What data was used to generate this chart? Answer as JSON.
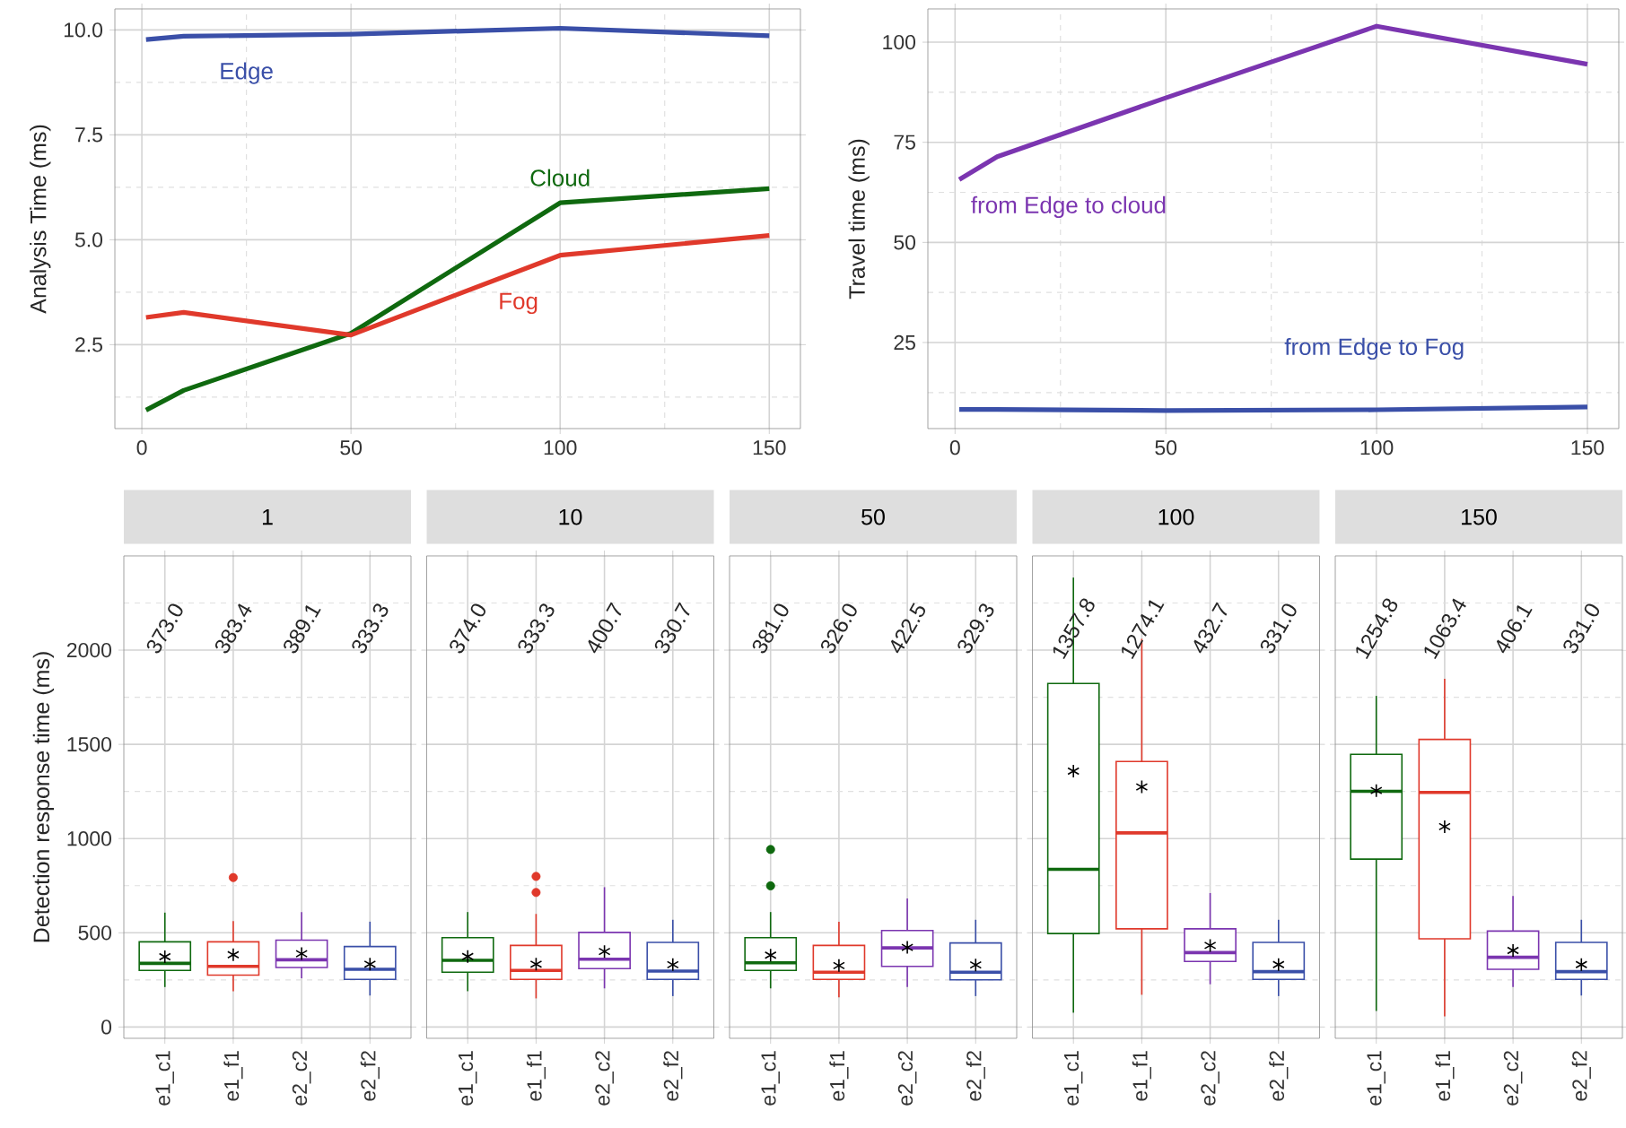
{
  "chart_data": [
    {
      "type": "line",
      "ylabel": "Analysis Time (ms)",
      "x": [
        1,
        10,
        50,
        100,
        150
      ],
      "xlim": [
        -6.45,
        157.45
      ],
      "ylim": [
        0.5,
        10.5
      ],
      "xticks": [
        0,
        50,
        100,
        150
      ],
      "yticks": [
        {
          "value": 2.5,
          "label": "2.5"
        },
        {
          "value": 5,
          "label": "5.0"
        },
        {
          "value": 7.5,
          "label": "7.5"
        },
        {
          "value": 10,
          "label": "10.0"
        }
      ],
      "grid": true,
      "series": [
        {
          "name": "Edge",
          "color": "#3a4fa8",
          "values": [
            9.77,
            9.85,
            9.9,
            10.04,
            9.86
          ]
        },
        {
          "name": "Cloud",
          "color": "#0f690f",
          "values": [
            0.94,
            1.41,
            2.77,
            5.88,
            6.22
          ]
        },
        {
          "name": "Fog",
          "color": "#e0392b",
          "values": [
            3.15,
            3.27,
            2.73,
            4.63,
            5.1
          ]
        }
      ]
    },
    {
      "type": "line",
      "ylabel": "Travel time (ms)",
      "x": [
        1,
        10,
        50,
        100,
        150
      ],
      "xlim": [
        -6.45,
        157.45
      ],
      "ylim": [
        3.5,
        108.3
      ],
      "xticks": [
        0,
        50,
        100,
        150
      ],
      "yticks": [
        25,
        50,
        75,
        100
      ],
      "grid": true,
      "series": [
        {
          "name": "from Edge to cloud",
          "color": "#7b35b0",
          "values": [
            65.7,
            71.4,
            86.1,
            104.0,
            94.5
          ]
        },
        {
          "name": "from Edge to Fog",
          "color": "#3a4fa8",
          "values": [
            8.3,
            8.3,
            8.0,
            8.2,
            8.9
          ]
        }
      ]
    },
    {
      "type": "box",
      "title": "1",
      "ylabel": "Detection response time (ms)",
      "categories": [
        "e1_c1",
        "e1_f1",
        "e2_c2",
        "e2_f2"
      ],
      "colors": [
        "#0f690f",
        "#e0392b",
        "#7b35b0",
        "#3a4fa8"
      ],
      "ylim": [
        -60,
        2500
      ],
      "yticks": [
        0,
        500,
        1000,
        1500,
        2000
      ],
      "grid": true,
      "value_labels": [
        "373.0",
        "383.4",
        "389.1",
        "333.3"
      ],
      "boxes": [
        {
          "low": 212,
          "q1": 300,
          "median": 338,
          "q3": 452,
          "high": 607,
          "mean": 373.0
        },
        {
          "low": 190,
          "q1": 275,
          "median": 322,
          "q3": 452,
          "high": 562,
          "mean": 383.4,
          "outliers": [
            793
          ]
        },
        {
          "low": 259,
          "q1": 316,
          "median": 357,
          "q3": 461,
          "high": 610,
          "mean": 389.1
        },
        {
          "low": 167,
          "q1": 253,
          "median": 306,
          "q3": 427,
          "high": 559,
          "mean": 333.3
        }
      ]
    },
    {
      "type": "box",
      "title": "10",
      "categories": [
        "e1_c1",
        "e1_f1",
        "e2_c2",
        "e2_f2"
      ],
      "colors": [
        "#0f690f",
        "#e0392b",
        "#7b35b0",
        "#3a4fa8"
      ],
      "ylim": [
        -60,
        2500
      ],
      "yticks": [
        0,
        500,
        1000,
        1500,
        2000
      ],
      "tick_labels": "x",
      "grid": true,
      "value_labels": [
        "374.0",
        "333.3",
        "400.7",
        "330.7"
      ],
      "boxes": [
        {
          "low": 190,
          "q1": 291,
          "median": 354,
          "q3": 474,
          "high": 610,
          "mean": 374.0
        },
        {
          "low": 152,
          "q1": 253,
          "median": 300,
          "q3": 433,
          "high": 600,
          "mean": 333.3,
          "outliers": [
            714,
            799
          ]
        },
        {
          "low": 205,
          "q1": 310,
          "median": 360,
          "q3": 502,
          "high": 742,
          "mean": 400.7
        },
        {
          "low": 164,
          "q1": 253,
          "median": 297,
          "q3": 449,
          "high": 569,
          "mean": 330.7
        }
      ]
    },
    {
      "type": "box",
      "title": "50",
      "categories": [
        "e1_c1",
        "e1_f1",
        "e2_c2",
        "e2_f2"
      ],
      "colors": [
        "#0f690f",
        "#e0392b",
        "#7b35b0",
        "#3a4fa8"
      ],
      "ylim": [
        -60,
        2500
      ],
      "yticks": [
        0,
        500,
        1000,
        1500,
        2000
      ],
      "tick_labels": "x",
      "grid": true,
      "value_labels": [
        "381.0",
        "326.0",
        "422.5",
        "329.3"
      ],
      "boxes": [
        {
          "low": 205,
          "q1": 300,
          "median": 341,
          "q3": 474,
          "high": 610,
          "mean": 381.0,
          "outliers": [
            749,
            942
          ]
        },
        {
          "low": 158,
          "q1": 253,
          "median": 291,
          "q3": 433,
          "high": 559,
          "mean": 326.0
        },
        {
          "low": 212,
          "q1": 322,
          "median": 420,
          "q3": 512,
          "high": 682,
          "mean": 422.5
        },
        {
          "low": 164,
          "q1": 250,
          "median": 291,
          "q3": 446,
          "high": 569,
          "mean": 329.3
        }
      ]
    },
    {
      "type": "box",
      "title": "100",
      "categories": [
        "e1_c1",
        "e1_f1",
        "e2_c2",
        "e2_f2"
      ],
      "colors": [
        "#0f690f",
        "#e0392b",
        "#7b35b0",
        "#3a4fa8"
      ],
      "ylim": [
        -60,
        2500
      ],
      "yticks": [
        0,
        500,
        1000,
        1500,
        2000
      ],
      "tick_labels": "x",
      "grid": true,
      "value_labels": [
        "1357.8",
        "1274.1",
        "432.7",
        "331.0"
      ],
      "boxes": [
        {
          "low": 76,
          "q1": 496,
          "median": 837,
          "q3": 1823,
          "high": 2385,
          "mean": 1357.8
        },
        {
          "low": 171,
          "q1": 521,
          "median": 1030,
          "q3": 1409,
          "high": 2060,
          "mean": 1274.1
        },
        {
          "low": 227,
          "q1": 348,
          "median": 395,
          "q3": 521,
          "high": 711,
          "mean": 432.7
        },
        {
          "low": 164,
          "q1": 253,
          "median": 294,
          "q3": 449,
          "high": 569,
          "mean": 331.0
        }
      ]
    },
    {
      "type": "box",
      "title": "150",
      "categories": [
        "e1_c1",
        "e1_f1",
        "e2_c2",
        "e2_f2"
      ],
      "colors": [
        "#0f690f",
        "#e0392b",
        "#7b35b0",
        "#3a4fa8"
      ],
      "ylim": [
        -60,
        2500
      ],
      "yticks": [
        0,
        500,
        1000,
        1500,
        2000
      ],
      "tick_labels": "x",
      "grid": true,
      "value_labels": [
        "1254.8",
        "1063.4",
        "406.1",
        "331.0"
      ],
      "boxes": [
        {
          "low": 85,
          "q1": 891,
          "median": 1251,
          "q3": 1447,
          "high": 1757,
          "mean": 1254.8
        },
        {
          "low": 57,
          "q1": 468,
          "median": 1245,
          "q3": 1526,
          "high": 1848,
          "mean": 1063.4
        },
        {
          "low": 212,
          "q1": 306,
          "median": 370,
          "q3": 509,
          "high": 695,
          "mean": 406.1
        },
        {
          "low": 167,
          "q1": 253,
          "median": 294,
          "q3": 449,
          "high": 569,
          "mean": 331.0
        }
      ]
    }
  ]
}
